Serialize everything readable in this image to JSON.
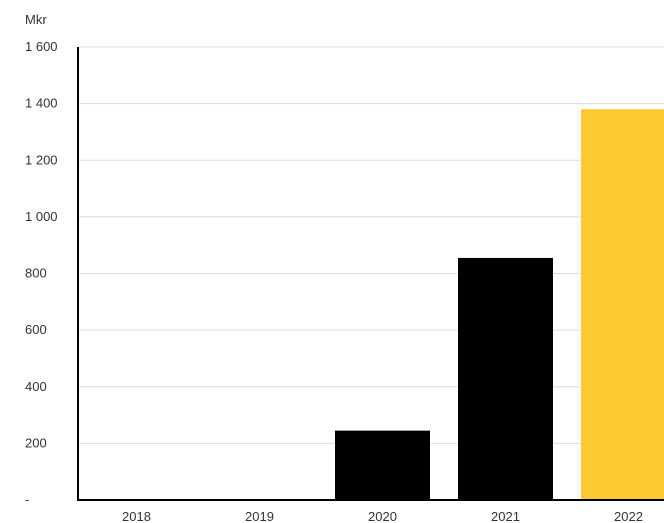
{
  "chart_data": {
    "type": "bar",
    "unit_label": "Mkr",
    "categories": [
      "2018",
      "2019",
      "2020",
      "2021",
      "2022"
    ],
    "values": [
      0,
      0,
      245,
      855,
      1380
    ],
    "bar_colors": [
      "#000000",
      "#000000",
      "#000000",
      "#000000",
      "#FCC932"
    ],
    "ylim": [
      0,
      1600
    ],
    "y_ticks": [
      0,
      200,
      400,
      600,
      800,
      1000,
      1200,
      1400,
      1600
    ],
    "y_tick_labels": [
      "-",
      "200",
      "400",
      "600",
      "800",
      "1 000",
      "1 200",
      "1 400",
      "1 600"
    ],
    "grid": true,
    "grid_color": "#dddddd",
    "axis_color": "#000000"
  }
}
